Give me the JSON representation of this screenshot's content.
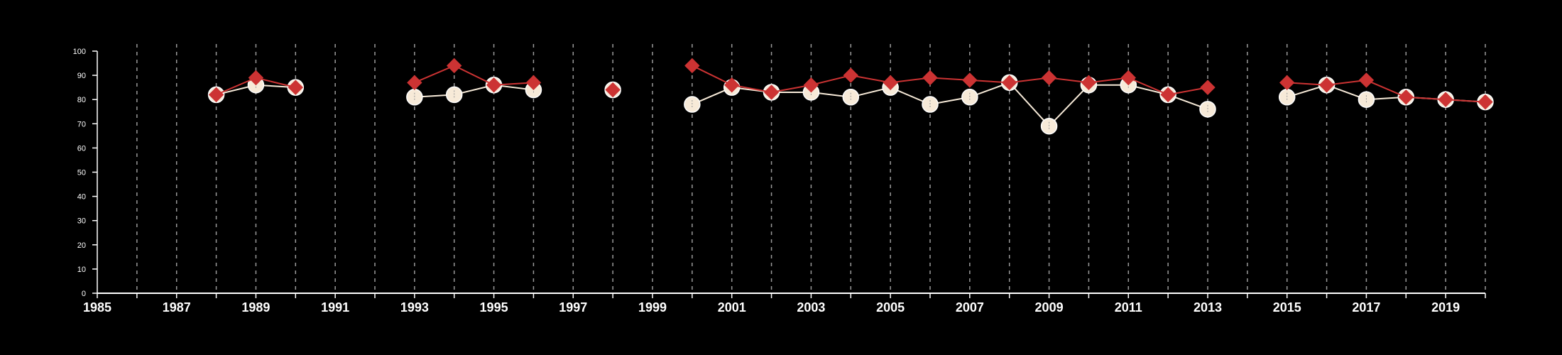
{
  "chart_data": {
    "type": "line",
    "title": "",
    "xlabel": "",
    "ylabel": "",
    "xlim": [
      1985,
      2020
    ],
    "ylim": [
      0,
      100
    ],
    "x_ticks": [
      1985,
      1987,
      1989,
      1991,
      1993,
      1995,
      1997,
      1999,
      2001,
      2003,
      2005,
      2007,
      2009,
      2011,
      2013,
      2015,
      2017,
      2019
    ],
    "y_ticks": [
      0,
      10,
      20,
      30,
      40,
      50,
      60,
      70,
      80,
      90,
      100
    ],
    "grid": "vertical dashed lines at every year",
    "legend": "none",
    "background": "#000000",
    "series": [
      {
        "marker": "diamond",
        "color": "#cc3333",
        "segments": [
          [
            [
              1988,
              82
            ],
            [
              1989,
              89
            ],
            [
              1990,
              85
            ]
          ],
          [
            [
              1993,
              87
            ],
            [
              1994,
              94
            ],
            [
              1995,
              86
            ],
            [
              1996,
              87
            ]
          ],
          [
            [
              1998,
              84
            ]
          ],
          [
            [
              2000,
              94
            ],
            [
              2001,
              86
            ],
            [
              2002,
              83
            ],
            [
              2003,
              86
            ],
            [
              2004,
              90
            ],
            [
              2005,
              87
            ],
            [
              2006,
              89
            ],
            [
              2007,
              88
            ],
            [
              2008,
              87
            ],
            [
              2009,
              89
            ],
            [
              2010,
              87
            ],
            [
              2011,
              89
            ],
            [
              2012,
              82
            ],
            [
              2013,
              85
            ]
          ],
          [
            [
              2015,
              87
            ],
            [
              2016,
              86
            ],
            [
              2017,
              88
            ],
            [
              2018,
              81
            ],
            [
              2019,
              80
            ],
            [
              2020,
              79
            ]
          ]
        ]
      },
      {
        "marker": "circle",
        "color": "#f7ead8",
        "segments": [
          [
            [
              1988,
              82
            ],
            [
              1989,
              86
            ],
            [
              1990,
              85
            ]
          ],
          [
            [
              1993,
              81
            ],
            [
              1994,
              82
            ],
            [
              1995,
              86
            ],
            [
              1996,
              84
            ]
          ],
          [
            [
              1998,
              84
            ]
          ],
          [
            [
              2000,
              78
            ],
            [
              2001,
              85
            ],
            [
              2002,
              83
            ],
            [
              2003,
              83
            ],
            [
              2004,
              81
            ],
            [
              2005,
              85
            ],
            [
              2006,
              78
            ],
            [
              2007,
              81
            ],
            [
              2008,
              87
            ],
            [
              2009,
              69
            ],
            [
              2010,
              86
            ],
            [
              2011,
              86
            ],
            [
              2012,
              82
            ],
            [
              2013,
              76
            ]
          ],
          [
            [
              2015,
              81
            ],
            [
              2016,
              86
            ],
            [
              2017,
              80
            ],
            [
              2018,
              81
            ],
            [
              2019,
              80
            ],
            [
              2020,
              79
            ]
          ]
        ]
      }
    ]
  }
}
